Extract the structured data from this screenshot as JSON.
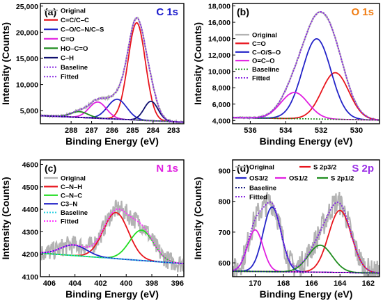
{
  "chart_data": [
    {
      "type": "line",
      "panel_label": "(a)",
      "title": "C 1s",
      "title_color": "#1a1acc",
      "xlabel": "Binding Energy (eV)",
      "ylabel": "Intensity (Counts)",
      "x_reversed": true,
      "xlim": [
        289.5,
        282.5
      ],
      "ylim": [
        2500,
        25500
      ],
      "xticks": [
        288,
        287,
        286,
        285,
        284,
        283
      ],
      "yticks": [
        5000,
        10000,
        15000,
        20000,
        25000
      ],
      "ytick_labels": [
        "5,000",
        "10,000",
        "15,000",
        "20,000",
        "25,000"
      ],
      "baseline": {
        "x1": 289.5,
        "y1": 4050,
        "x2": 282.5,
        "y2": 2800
      },
      "components": [
        {
          "name": "C=C/C–C",
          "center": 284.8,
          "fwhm": 1.0,
          "height": 18600,
          "color": "#e8141c"
        },
        {
          "name": "C–O/C–N/C–S",
          "center": 285.75,
          "fwhm": 1.1,
          "height": 3800,
          "color": "#2323c8"
        },
        {
          "name": "C=O",
          "center": 286.7,
          "fwhm": 1.0,
          "height": 3100,
          "color": "#e01ee0"
        },
        {
          "name": "HO–C=O",
          "center": 287.6,
          "fwhm": 1.0,
          "height": 1100,
          "color": "#1e8c1e"
        },
        {
          "name": "C–H",
          "center": 284.1,
          "fwhm": 0.8,
          "height": 3700,
          "color": "#0f0f6e"
        }
      ],
      "noise": 180,
      "legend": [
        "Original",
        "C=C/C–C",
        "C–O/C–N/C–S",
        "C=O",
        "HO–C=O",
        "C–H",
        "Baseline",
        "Fitted"
      ]
    },
    {
      "type": "line",
      "panel_label": "(b)",
      "title": "O 1s",
      "title_color": "#f07c12",
      "xlabel": "Binding Energy (eV)",
      "ylabel": "Intensity (Counts)",
      "x_reversed": true,
      "xlim": [
        537.0,
        528.7
      ],
      "ylim": [
        3600,
        18300
      ],
      "xticks": [
        536,
        534,
        532,
        530
      ],
      "yticks": [
        4000,
        6000,
        8000,
        10000,
        12000,
        14000,
        16000,
        18000
      ],
      "ytick_labels": [
        "4,000",
        "6,000",
        "8,000",
        "10,000",
        "12,000",
        "14,000",
        "16,000",
        "18,000"
      ],
      "baseline": {
        "x1": 537.0,
        "y1": 4350,
        "x2": 528.7,
        "y2": 4050
      },
      "components": [
        {
          "name": "C=O",
          "center": 531.2,
          "fwhm": 1.8,
          "height": 5700,
          "color": "#e8141c"
        },
        {
          "name": "C–O/S–O",
          "center": 532.25,
          "fwhm": 1.9,
          "height": 9800,
          "color": "#2323c8"
        },
        {
          "name": "O=C–O",
          "center": 533.5,
          "fwhm": 1.8,
          "height": 3200,
          "color": "#e01ee0"
        }
      ],
      "noise": 90,
      "legend": [
        "Original",
        "C=O",
        "C–O/S–O",
        "O=C–O",
        "Baseline",
        "Fitted"
      ]
    },
    {
      "type": "line",
      "panel_label": "(c)",
      "title": "N 1s",
      "title_color": "#e01ee0",
      "xlabel": "Binding Energy (eV)",
      "ylabel": "Intensity (Counts)",
      "x_reversed": true,
      "xlim": [
        406.7,
        395.5
      ],
      "ylim": [
        4100,
        4620
      ],
      "xticks": [
        406,
        404,
        402,
        400,
        398,
        396
      ],
      "yticks": [
        4100,
        4200,
        4300,
        4400,
        4500,
        4600
      ],
      "ytick_labels": [
        "4100",
        "4200",
        "4300",
        "4400",
        "4500",
        "4600"
      ],
      "baseline": {
        "x1": 406.7,
        "y1": 4205,
        "x2": 395.5,
        "y2": 4158
      },
      "components": [
        {
          "name": "C–N–H",
          "center": 400.8,
          "fwhm": 2.3,
          "height": 205,
          "color": "#e8141c"
        },
        {
          "name": "C–N–C",
          "center": 398.8,
          "fwhm": 2.2,
          "height": 135,
          "color": "#22dd22"
        },
        {
          "name": "C3–N",
          "center": 404.1,
          "fwhm": 2.4,
          "height": 47,
          "color": "#2323c8"
        }
      ],
      "noise": 42,
      "legend": [
        "Original",
        "C–N–H",
        "C–N–C",
        "C3–N",
        "Baseline",
        "Fitted"
      ]
    },
    {
      "type": "line",
      "panel_label": "(d)",
      "title": "S 2p",
      "title_color": "#9a2ee6",
      "xlabel": "Binding Energy (eV)",
      "ylabel": "Intensity (Counts)",
      "x_reversed": true,
      "xlim": [
        171.6,
        161.2
      ],
      "ylim": [
        555,
        935
      ],
      "xticks": [
        170,
        168,
        166,
        164,
        162
      ],
      "yticks": [
        600,
        700,
        800,
        900
      ],
      "ytick_labels": [
        "600",
        "700",
        "800",
        "900"
      ],
      "baseline": {
        "x1": 171.6,
        "y1": 573,
        "x2": 161.2,
        "y2": 567
      },
      "components": [
        {
          "name": "S 2p3/2",
          "center": 164.0,
          "fwhm": 1.9,
          "height": 202,
          "color": "#e8141c"
        },
        {
          "name": "OS3/2",
          "center": 168.8,
          "fwhm": 1.5,
          "height": 210,
          "color": "#2323c8"
        },
        {
          "name": "OS1/2",
          "center": 170.0,
          "fwhm": 1.3,
          "height": 135,
          "color": "#e01ee0"
        },
        {
          "name": "S 2p1/2",
          "center": 165.4,
          "fwhm": 2.0,
          "height": 88,
          "color": "#1e8c1e"
        }
      ],
      "noise": 40,
      "legend": [
        "Original",
        "S 2p3/2",
        "OS3/2",
        "OS1/2",
        "S 2p1/2",
        "Baseline",
        "Fitted"
      ]
    }
  ],
  "colors": {
    "original": "#b3b3b3",
    "fitted": "#8a2be2",
    "baseline_a": "#8a2be2",
    "baseline_b": "#1e8c1e",
    "baseline_c": "#22cfe0",
    "baseline_d": "#1a1a80",
    "fitted_c": "#ff33ff"
  }
}
